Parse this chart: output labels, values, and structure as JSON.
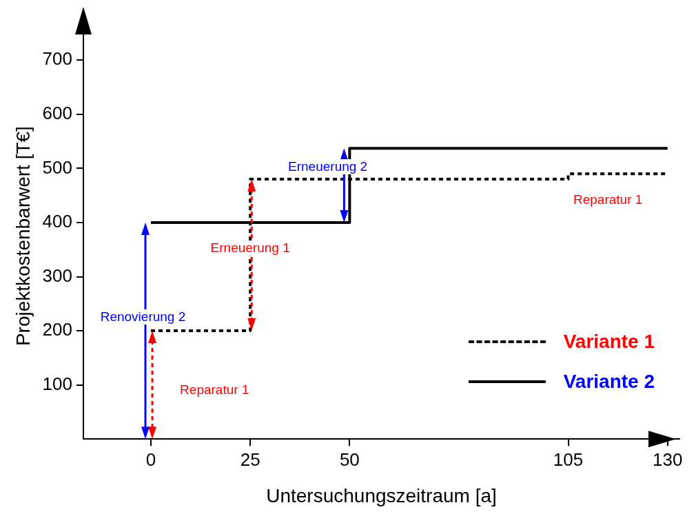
{
  "chart_data": {
    "type": "step",
    "xlabel": "Untersuchungszeitraum [a]",
    "ylabel": "Projektkostenbarwert [T€]",
    "xlim": [
      -17,
      133
    ],
    "xticks": [
      0,
      25,
      50,
      105,
      130
    ],
    "ylim": [
      0,
      750
    ],
    "yticks": [
      100,
      200,
      300,
      400,
      500,
      600,
      700
    ],
    "grid": false,
    "legend": "bottom right",
    "marker": "none",
    "series": [
      {
        "name": "Variante 1",
        "color": "#000000",
        "line_style": "dashed",
        "x": [
          0,
          25,
          105,
          130
        ],
        "values": [
          200,
          480,
          490,
          490
        ]
      },
      {
        "name": "Variante 2",
        "color": "#000000",
        "line_style": "solid",
        "x": [
          0,
          50,
          130
        ],
        "values": [
          400,
          537,
          537
        ]
      }
    ],
    "annotations": [
      "Reparatur 1",
      "Renovierung 2",
      "Erneuerung 1",
      "Erneuerung 2",
      "Reparatur 1"
    ]
  }
}
